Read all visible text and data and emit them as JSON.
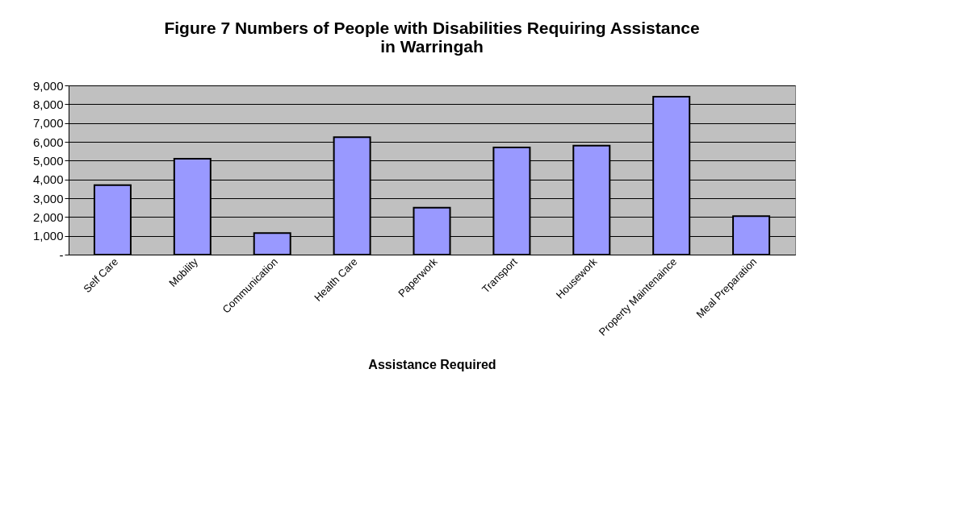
{
  "chart_data": {
    "type": "bar",
    "title": [
      "Figure 7  Numbers of People with Disabilities Requiring Assistance",
      "in Warringah"
    ],
    "xlabel": "Assistance Required",
    "categories": [
      "Self Care",
      "Mobility",
      "Communication",
      "Health Care",
      "Paperwork",
      "Transport",
      "Housework",
      "Property Maintenaince",
      "Meal Preparation"
    ],
    "values": [
      3700,
      5100,
      1150,
      6250,
      2500,
      5700,
      5800,
      8400,
      2050
    ],
    "color": "#9999ff",
    "ylim": [
      0,
      9000
    ],
    "yticks": [
      {
        "value": 0,
        "label": "-"
      },
      {
        "value": 1000,
        "label": "1,000"
      },
      {
        "value": 2000,
        "label": "2,000"
      },
      {
        "value": 3000,
        "label": "3,000"
      },
      {
        "value": 4000,
        "label": "4,000"
      },
      {
        "value": 5000,
        "label": "5,000"
      },
      {
        "value": 6000,
        "label": "6,000"
      },
      {
        "value": 7000,
        "label": "7,000"
      },
      {
        "value": 8000,
        "label": "8,000"
      },
      {
        "value": 9000,
        "label": "9,000"
      }
    ],
    "grid": "y"
  }
}
